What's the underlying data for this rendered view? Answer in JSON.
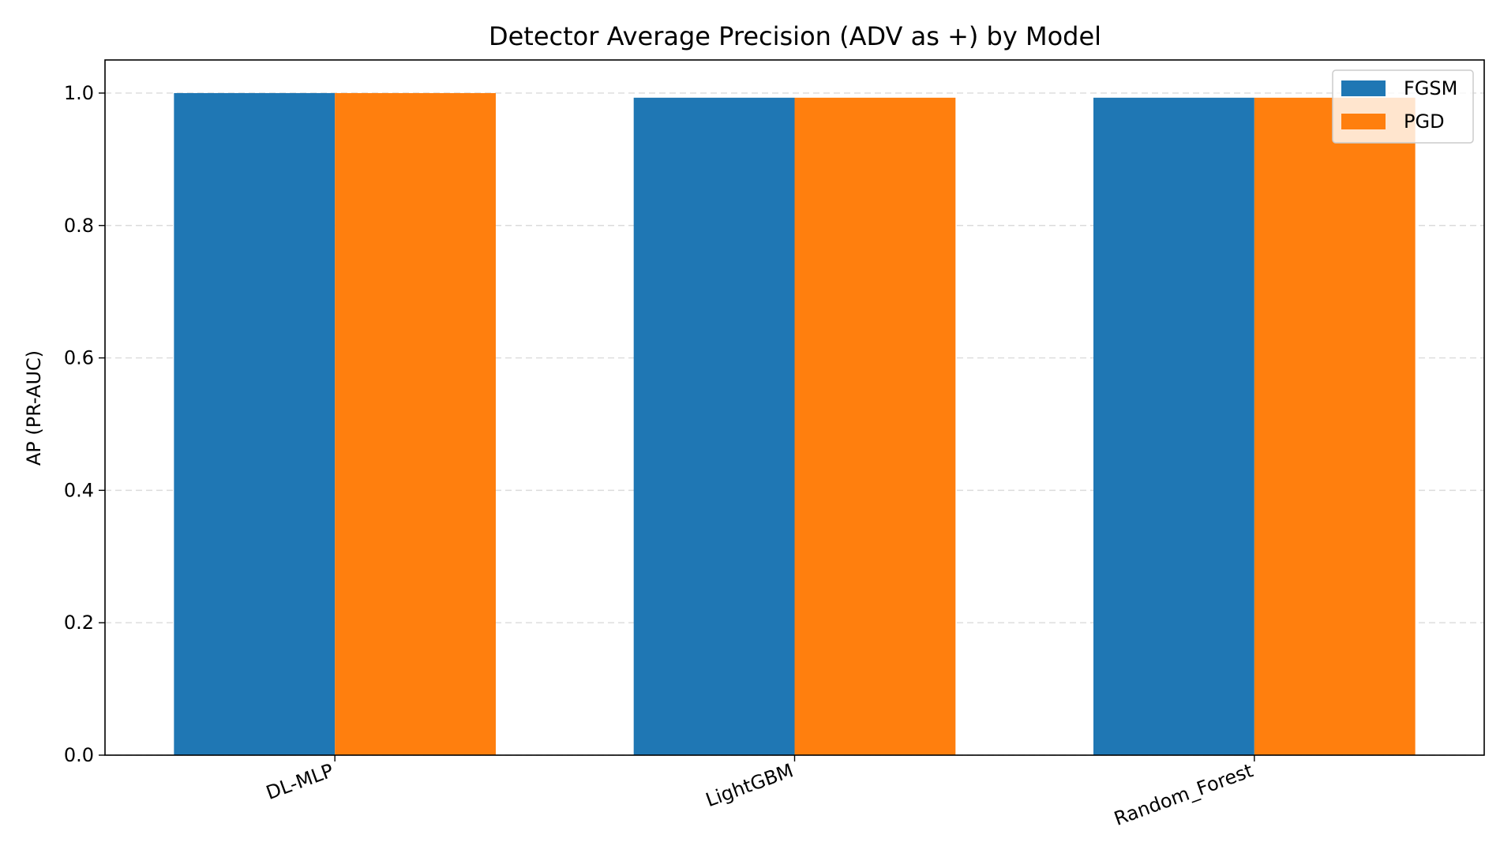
{
  "chart_data": {
    "type": "bar",
    "title": "Detector Average Precision (ADV as +) by Model",
    "xlabel": "",
    "ylabel": "AP (PR-AUC)",
    "categories": [
      "DL-MLP",
      "LightGBM",
      "Random_Forest"
    ],
    "series": [
      {
        "name": "FGSM",
        "color": "#1f77b4",
        "values": [
          1.0,
          0.993,
          0.993
        ]
      },
      {
        "name": "PGD",
        "color": "#ff7f0e",
        "values": [
          1.0,
          0.993,
          0.993
        ]
      }
    ],
    "ylim": [
      0,
      1.05
    ],
    "yticks": [
      0.0,
      0.2,
      0.4,
      0.6,
      0.8,
      1.0
    ],
    "ytick_labels": [
      "0.0",
      "0.2",
      "0.4",
      "0.6",
      "0.8",
      "1.0"
    ],
    "grid": true,
    "grid_axis": "y",
    "legend_position": "top-right"
  }
}
